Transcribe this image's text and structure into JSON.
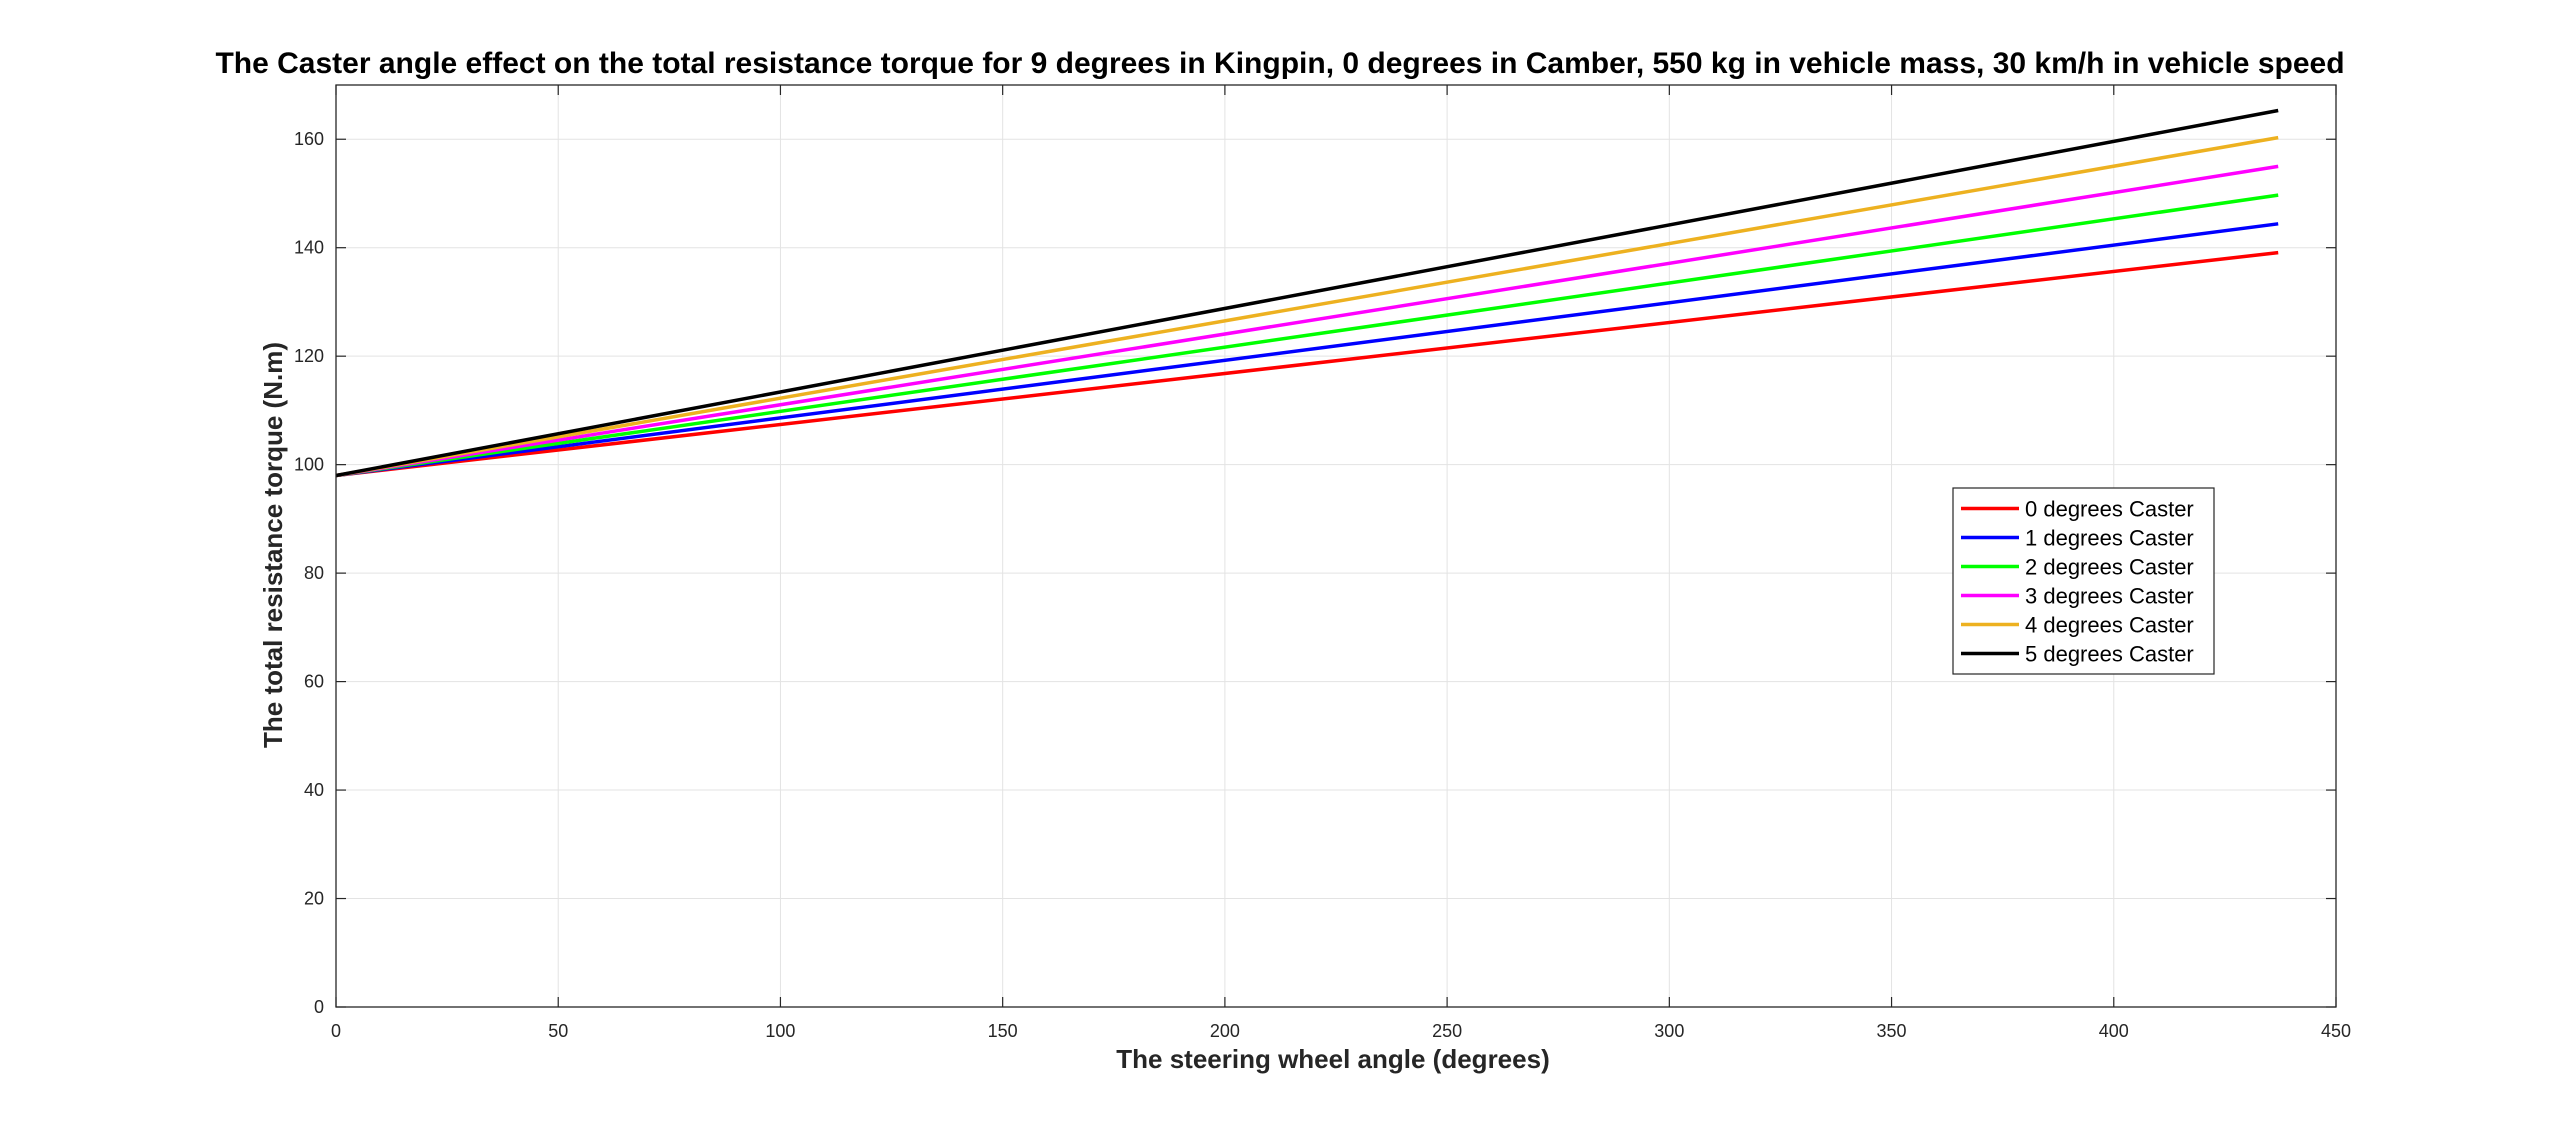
{
  "chart_data": {
    "type": "line",
    "title": "The Caster angle effect on the total resistance torque for 9 degrees in Kingpin, 0 degrees in Camber, 550 kg in vehicle mass, 30 km/h in vehicle speed",
    "xlabel": "The steering wheel angle (degrees)",
    "ylabel": "The total resistance torque (N.m)",
    "xlim": [
      0,
      450
    ],
    "ylim": [
      0,
      170
    ],
    "xticks": [
      0,
      50,
      100,
      150,
      200,
      250,
      300,
      350,
      400,
      450
    ],
    "yticks": [
      0,
      20,
      40,
      60,
      80,
      100,
      120,
      140,
      160
    ],
    "grid": true,
    "legend_position": "right",
    "series": [
      {
        "name": "0 degrees Caster",
        "color": "#ff0000",
        "x": [
          0,
          437
        ],
        "y": [
          98,
          139.1
        ]
      },
      {
        "name": "1 degrees Caster",
        "color": "#0000ff",
        "x": [
          0,
          437
        ],
        "y": [
          98,
          144.4
        ]
      },
      {
        "name": "2 degrees Caster",
        "color": "#00ff00",
        "x": [
          0,
          437
        ],
        "y": [
          98,
          149.7
        ]
      },
      {
        "name": "3 degrees Caster",
        "color": "#ff00ff",
        "x": [
          0,
          437
        ],
        "y": [
          98,
          155.0
        ]
      },
      {
        "name": "4 degrees Caster",
        "color": "#edb120",
        "x": [
          0,
          437
        ],
        "y": [
          98,
          160.3
        ]
      },
      {
        "name": "5 degrees Caster",
        "color": "#000000",
        "x": [
          0,
          437
        ],
        "y": [
          98,
          165.3
        ]
      }
    ]
  }
}
